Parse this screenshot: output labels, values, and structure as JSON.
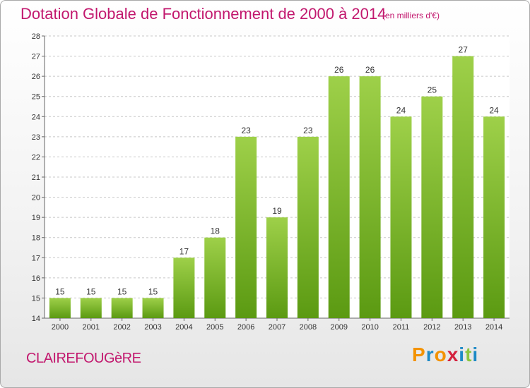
{
  "header": {
    "title": "Dotation Globale de Fonctionnement de 2000 à 2014",
    "subtitle": "(en milliers d'€)"
  },
  "footer": {
    "commune": "CLAIREFOUGèRE",
    "brand_letters": [
      "P",
      "r",
      "o",
      "x",
      "i",
      "t",
      "i"
    ],
    "brand_colors": [
      "#f39200",
      "#1d8ac6",
      "#f39200",
      "#d4213d",
      "#1d8ac6",
      "#8cc63f",
      "#1d8ac6"
    ]
  },
  "colors": {
    "title": "#c2186e",
    "bar_light": "#9ed049",
    "bar_dark": "#5b9a12",
    "grid": "#c8c8c8"
  },
  "chart_data": {
    "type": "bar",
    "categories": [
      "2000",
      "2001",
      "2002",
      "2003",
      "2004",
      "2005",
      "2006",
      "2007",
      "2008",
      "2009",
      "2010",
      "2011",
      "2012",
      "2013",
      "2014"
    ],
    "values": [
      15,
      15,
      15,
      15,
      17,
      18,
      23,
      19,
      23,
      26,
      26,
      24,
      25,
      27,
      24
    ],
    "ylim": [
      14,
      28
    ],
    "yticks": [
      14,
      15,
      16,
      17,
      18,
      19,
      20,
      21,
      22,
      23,
      24,
      25,
      26,
      27,
      28
    ],
    "grid": true,
    "legend": "none"
  }
}
